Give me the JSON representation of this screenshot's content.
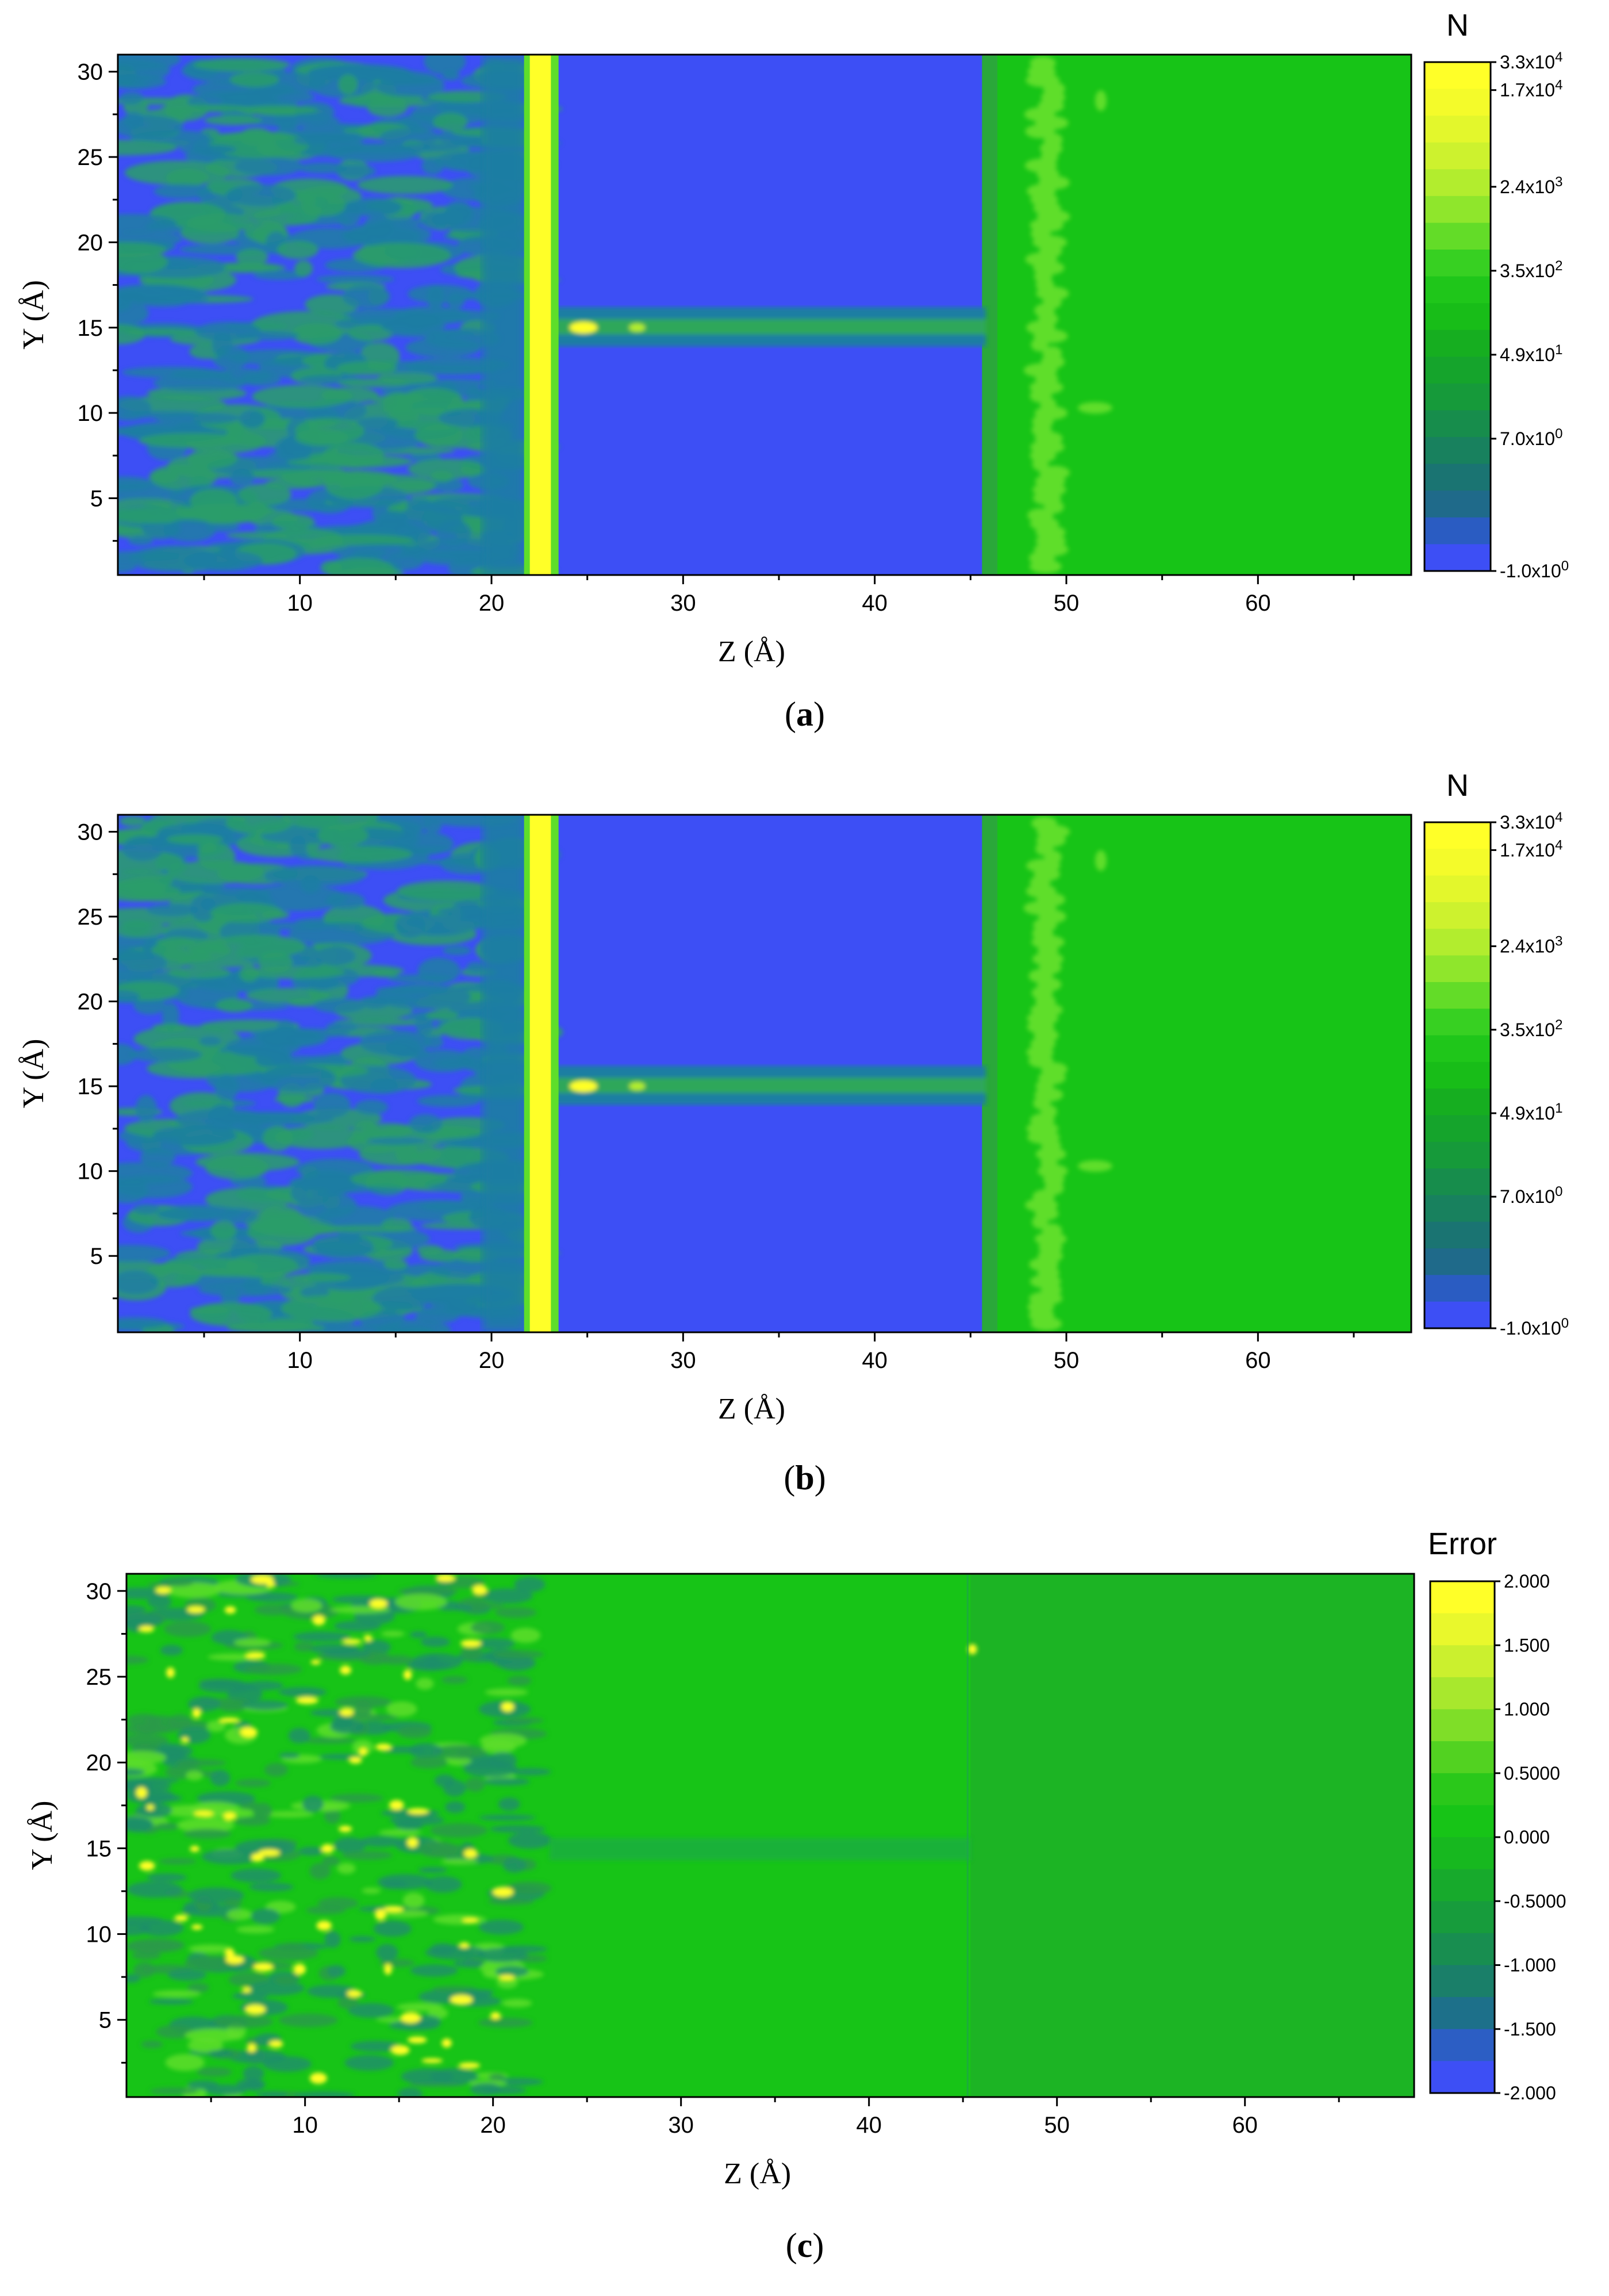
{
  "colors": {
    "blue": "#3d4ff5",
    "teal": "#1f7ea3",
    "green": "#17c417",
    "lightgreen": "#5ede2a",
    "yellow": "#ffff28",
    "yellowgreen": "#b4ee2c"
  },
  "chart_data": [
    {
      "type": "heatmap",
      "caption": "a",
      "xlabel": "Z (Å)",
      "ylabel": "Y (Å)",
      "xlim": [
        0.5,
        68
      ],
      "ylim": [
        0.5,
        31
      ],
      "xticks": [
        "10",
        "20",
        "30",
        "40",
        "50",
        "60"
      ],
      "yticks": [
        "5",
        "10",
        "15",
        "20",
        "25",
        "30"
      ],
      "colorbar": {
        "title": "N",
        "scale": "log",
        "labels": [
          {
            "base": "3.3x10",
            "exp": "4"
          },
          {
            "base": "1.7x10",
            "exp": "4"
          },
          {
            "base": "2.4x10",
            "exp": "3"
          },
          {
            "base": "3.5x10",
            "exp": "2"
          },
          {
            "base": "4.9x10",
            "exp": "1"
          },
          {
            "base": "7.0x10",
            "exp": "0"
          },
          {
            "base": "-1.0x10",
            "exp": "0"
          }
        ]
      }
    },
    {
      "type": "heatmap",
      "caption": "b",
      "xlabel": "Z (Å)",
      "ylabel": "Y (Å)",
      "xlim": [
        0.5,
        68
      ],
      "ylim": [
        0.5,
        31
      ],
      "xticks": [
        "10",
        "20",
        "30",
        "40",
        "50",
        "60"
      ],
      "yticks": [
        "5",
        "10",
        "15",
        "20",
        "25",
        "30"
      ],
      "colorbar": {
        "title": "N",
        "scale": "log",
        "labels": [
          {
            "base": "3.3x10",
            "exp": "4"
          },
          {
            "base": "1.7x10",
            "exp": "4"
          },
          {
            "base": "2.4x10",
            "exp": "3"
          },
          {
            "base": "3.5x10",
            "exp": "2"
          },
          {
            "base": "4.9x10",
            "exp": "1"
          },
          {
            "base": "7.0x10",
            "exp": "0"
          },
          {
            "base": "-1.0x10",
            "exp": "0"
          }
        ]
      }
    },
    {
      "type": "heatmap",
      "caption": "c",
      "xlabel": "Z (Å)",
      "ylabel": "Y (Å)",
      "xlim": [
        0.5,
        69
      ],
      "ylim": [
        0.5,
        31
      ],
      "xticks": [
        "10",
        "20",
        "30",
        "40",
        "50",
        "60"
      ],
      "yticks": [
        "5",
        "10",
        "15",
        "20",
        "25",
        "30"
      ],
      "colorbar": {
        "title": "Error",
        "scale": "linear",
        "labels": [
          "2.000",
          "1.500",
          "1.000",
          "0.5000",
          "0.000",
          "-0.5000",
          "-1.000",
          "-1.500",
          "-2.000"
        ]
      }
    }
  ]
}
